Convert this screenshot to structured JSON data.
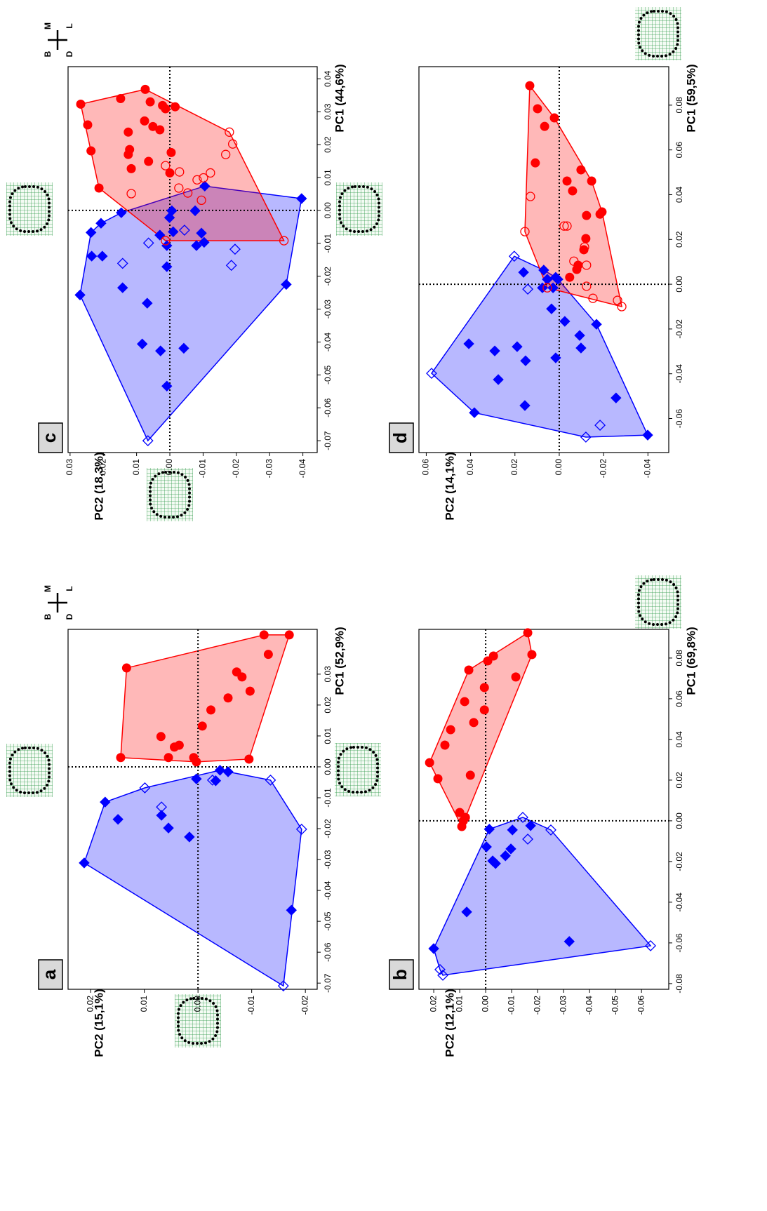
{
  "chart_data": [
    {
      "type": "scatter",
      "panel": "a",
      "xlabel": "PC1 (52,9%)",
      "ylabel": "PC2 (15,1%)",
      "compass": [
        "M",
        "L",
        "B",
        "D"
      ],
      "xlim": [
        -0.072,
        0.0445
      ],
      "ylim": [
        -0.0222,
        0.0242
      ],
      "zero_lines": true,
      "hulls": true,
      "xticks": [
        -0.07,
        -0.06,
        -0.05,
        -0.04,
        -0.03,
        -0.02,
        -0.01,
        {
          "value": 0,
          "label": "0.00"
        },
        0.01,
        0.02,
        0.03
      ],
      "yticks": [
        -0.02,
        -0.01,
        {
          "value": 0,
          "label": "0.00"
        },
        0.01,
        0.02
      ],
      "series": [
        {
          "color": "#0000ff",
          "marker": "diamond",
          "filled": true,
          "x": [
            -0.0311,
            -0.0114,
            -0.017,
            -0.0157,
            -0.0198,
            -0.0227,
            -0.0039,
            -0.0045,
            -0.0011,
            -0.0016,
            -0.0464
          ],
          "values": [
            0.0212,
            0.0173,
            0.0149,
            0.0068,
            0.0055,
            0.0016,
            0.0003,
            -0.0033,
            -0.0041,
            -0.0056,
            -0.0174
          ]
        },
        {
          "color": "#0000ff",
          "marker": "diamond",
          "filled": false,
          "x": [
            -0.0068,
            -0.013,
            -0.0043,
            -0.0043,
            -0.0202,
            -0.0709
          ],
          "values": [
            0.0099,
            0.0068,
            -0.0027,
            -0.0135,
            -0.0193,
            -0.0159
          ]
        },
        {
          "color": "#ff0000",
          "marker": "circle",
          "filled": true,
          "x": [
            0.003,
            0.032,
            0.0098,
            0.003,
            0.0064,
            0.007,
            0.003,
            0.0016,
            0.0132,
            0.0184,
            0.0223,
            0.0307,
            0.0291,
            0.0245,
            0.0364,
            0.0427,
            0.0427,
            0.0025
          ],
          "values": [
            0.0144,
            0.0133,
            0.0069,
            0.0055,
            0.0044,
            0.0035,
            0.0008,
            0.0003,
            -0.0008,
            -0.0024,
            -0.0056,
            -0.0072,
            -0.0082,
            -0.0097,
            -0.0131,
            -0.0123,
            -0.017,
            -0.0095
          ]
        }
      ]
    },
    {
      "type": "scatter",
      "panel": "b",
      "xlabel": "PC1 (69,8%)",
      "ylabel": "PC2 (12,1%)",
      "xlim": [
        -0.0828,
        0.0941
      ],
      "ylim": [
        -0.0705,
        0.0257
      ],
      "zero_lines": true,
      "hulls": true,
      "xticks": [
        -0.08,
        -0.06,
        -0.04,
        -0.02,
        {
          "value": 0,
          "label": "0.00"
        },
        0.02,
        0.04,
        0.06,
        0.08
      ],
      "yticks": [
        -0.06,
        -0.05,
        -0.04,
        -0.03,
        -0.02,
        -0.01,
        {
          "value": 0,
          "label": "0.00"
        },
        0.01,
        0.02
      ],
      "series": [
        {
          "color": "#0000ff",
          "marker": "diamond",
          "filled": true,
          "x": [
            -0.0628,
            -0.0448,
            -0.0197,
            -0.021,
            -0.0128,
            -0.0041,
            -0.0172,
            -0.0138,
            -0.0045,
            -0.0024,
            -0.0593
          ],
          "values": [
            0.02,
            0.0073,
            -0.0027,
            -0.0038,
            -0.0003,
            -0.0014,
            -0.0076,
            -0.0097,
            -0.0103,
            -0.0173,
            -0.0322
          ]
        },
        {
          "color": "#0000ff",
          "marker": "diamond",
          "filled": false,
          "x": [
            -0.0759,
            -0.0731,
            0.0017,
            -0.009,
            -0.0045,
            -0.0614
          ],
          "values": [
            0.0165,
            0.0176,
            -0.0143,
            -0.0162,
            -0.0251,
            -0.0635
          ]
        },
        {
          "color": "#ff0000",
          "marker": "circle",
          "filled": true,
          "x": [
            0.0924,
            0.0817,
            0.081,
            0.0786,
            0.0741,
            0.0707,
            0.0655,
            0.0586,
            0.0545,
            0.0483,
            0.0448,
            0.0372,
            0.0286,
            0.0207,
            0.0224,
            0.0017,
            0,
            0.0041,
            -0.0028
          ],
          "values": [
            -0.0162,
            -0.0178,
            -0.003,
            -0.0008,
            0.0065,
            -0.0116,
            0.0005,
            0.0081,
            0.0005,
            0.0046,
            0.0135,
            0.0157,
            0.0216,
            0.0184,
            0.0059,
            0.0078,
            0.0086,
            0.01,
            0.0092
          ]
        }
      ]
    },
    {
      "type": "scatter",
      "panel": "c",
      "xlabel": "PC1 (44,6%)",
      "ylabel": "PC2 (18,3%)",
      "compass": [
        "M",
        "L",
        "B",
        "D"
      ],
      "xlim": [
        -0.0736,
        0.0437
      ],
      "ylim": [
        -0.0443,
        0.0306
      ],
      "zero_lines": true,
      "hulls": true,
      "xticks": [
        -0.07,
        -0.06,
        -0.05,
        -0.04,
        -0.03,
        -0.02,
        -0.01,
        {
          "value": 0,
          "label": "0.00"
        },
        0.01,
        0.02,
        0.03,
        0.04
      ],
      "yticks": [
        -0.04,
        -0.03,
        -0.02,
        -0.01,
        {
          "value": 0,
          "label": "0.00"
        },
        0.01,
        0.02,
        0.03
      ],
      "series": [
        {
          "color": "#0000ff",
          "marker": "diamond",
          "filled": true,
          "x": [
            -0.0257,
            -0.0067,
            -0.0139,
            -0.0039,
            -0.0139,
            -0.0235,
            -0.0406,
            -0.0282,
            -0.0427,
            -0.0534,
            -0.0419,
            -0.0075,
            -0.0171,
            -0.0022,
            -0.0001,
            -0.0065,
            -0.0107,
            -0.0107,
            -0.0001,
            -0.0069,
            -0.0097,
            0.0074,
            0.0036,
            -0.0225,
            -0.0007
          ],
          "values": [
            0.027,
            0.0237,
            0.0235,
            0.0207,
            0.0203,
            0.0142,
            0.0083,
            0.0068,
            0.0028,
            0.0009,
            -0.0042,
            0.003,
            0.0009,
            0.0001,
            -0.0006,
            -0.001,
            0.0009,
            -0.008,
            -0.0076,
            -0.0095,
            -0.0103,
            -0.0105,
            -0.0396,
            -0.035,
            0.0146
          ]
        },
        {
          "color": "#0000ff",
          "marker": "diamond",
          "filled": false,
          "x": [
            -0.07,
            -0.0099,
            -0.0161,
            -0.006,
            -0.0118,
            -0.0167
          ],
          "values": [
            0.0066,
            0.0064,
            0.0142,
            -0.0044,
            -0.0196,
            -0.0185
          ]
        },
        {
          "color": "#ff0000",
          "marker": "circle",
          "filled": true,
          "x": [
            0.0068,
            0.026,
            0.0323,
            0.0181,
            0.034,
            0.0238,
            0.0185,
            0.017,
            0.0127,
            0.033,
            0.0319,
            0.0309,
            0.0315,
            0.0272,
            0.0149,
            0.0245,
            0.0176,
            0.0114,
            0.0255,
            0.0368
          ],
          "values": [
            0.0213,
            0.0247,
            0.0268,
            0.0237,
            0.0148,
            0.0125,
            0.0121,
            0.0125,
            0.0116,
            0.0059,
            0.0022,
            0.0013,
            -0.0016,
            0.0076,
            0.0064,
            0.003,
            -0.0004,
            0,
            0.0051,
            0.0074
          ]
        },
        {
          "color": "#ff0000",
          "marker": "circle",
          "filled": false,
          "x": [
            0.0136,
            0.0117,
            0.0068,
            0.0093,
            0.0053,
            0.0238,
            0.0202,
            0.017,
            0.0114,
            0.0099,
            0.0031,
            -0.0092,
            0.0051,
            -0.0092
          ],
          "values": [
            0.0013,
            -0.0029,
            -0.0027,
            -0.0082,
            -0.0054,
            -0.0179,
            -0.0189,
            -0.0168,
            -0.0122,
            -0.0101,
            -0.0095,
            0.0013,
            0.0116,
            -0.0343
          ]
        }
      ]
    },
    {
      "type": "scatter",
      "panel": "d",
      "xlabel": "PC1 (59,5%)",
      "ylabel": "PC2 (14,1%)",
      "xlim": [
        -0.0752,
        0.0972
      ],
      "ylim": [
        -0.0494,
        0.0633
      ],
      "zero_lines": true,
      "hulls": true,
      "xticks": [
        -0.06,
        -0.04,
        -0.02,
        {
          "value": 0,
          "label": "0.00"
        },
        0.02,
        0.04,
        0.06,
        0.08
      ],
      "yticks": [
        -0.04,
        -0.02,
        {
          "value": 0,
          "label": "0.00"
        },
        0.02,
        0.04,
        0.06
      ],
      "series": [
        {
          "color": "#0000ff",
          "marker": "diamond",
          "filled": true,
          "x": [
            -0.0266,
            -0.0574,
            -0.0298,
            -0.0426,
            -0.0279,
            0.0053,
            -0.0342,
            -0.0542,
            0.0063,
            -0.0016,
            0.0022,
            -0.011,
            -0.0016,
            0.0031,
            0.0022,
            -0.0166,
            -0.0329,
            -0.0229,
            -0.0285,
            -0.0508,
            -0.0674,
            -0.0179
          ],
          "values": [
            0.0408,
            0.0383,
            0.0291,
            0.0275,
            0.019,
            0.0161,
            0.0152,
            0.0155,
            0.007,
            0.0076,
            0.0054,
            0.0035,
            0.0028,
            0.0016,
            0.0006,
            -0.0025,
            0.0016,
            -0.0092,
            -0.0098,
            -0.0256,
            -0.0399,
            -0.0168
          ]
        },
        {
          "color": "#0000ff",
          "marker": "diamond",
          "filled": false,
          "x": [
            -0.0398,
            0.0125,
            -0.0022,
            -0.0683,
            -0.063
          ],
          "values": [
            0.0576,
            0.0203,
            0.0142,
            -0.012,
            -0.0184
          ]
        },
        {
          "color": "#ff0000",
          "marker": "circle",
          "filled": true,
          "x": [
            0.0887,
            0.0784,
            0.0705,
            0.0743,
            0.0542,
            0.0461,
            0.0417,
            0.0511,
            0.0461,
            0.0307,
            0.0204,
            0.0154,
            0.0085,
            0.0066,
            0.0031,
            0.0313,
            0.0323
          ],
          "values": [
            0.0133,
            0.0098,
            0.0066,
            0.0022,
            0.0108,
            -0.0035,
            -0.006,
            -0.0098,
            -0.0146,
            -0.0123,
            -0.012,
            -0.0111,
            -0.0085,
            -0.0079,
            -0.0047,
            -0.0184,
            -0.0193
          ]
        },
        {
          "color": "#ff0000",
          "marker": "circle",
          "filled": false,
          "x": [
            0.0235,
            0.0392,
            0.026,
            0.026,
            0.0103,
            0.0166,
            0.0085,
            -0.0063,
            -0.0072,
            -0.01,
            -0.0009,
            -0.0016
          ],
          "values": [
            0.0155,
            0.013,
            -0.0022,
            -0.0035,
            -0.0066,
            -0.0114,
            -0.0123,
            -0.0152,
            -0.0263,
            -0.0282,
            -0.0123,
            0.0054
          ]
        }
      ]
    }
  ]
}
